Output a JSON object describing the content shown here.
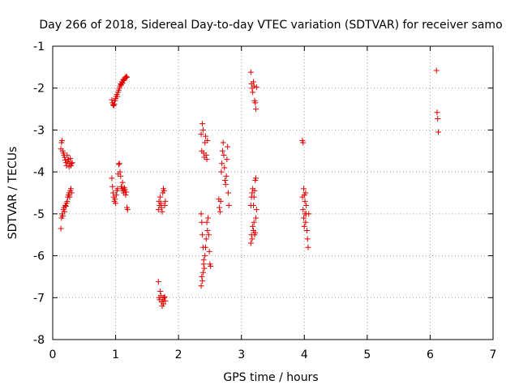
{
  "chart_data": {
    "type": "scatter",
    "title": "Day 266 of 2018, Sidereal Day-to-day VTEC variation (SDTVAR) for receiver samo",
    "xlabel": "GPS time / hours",
    "ylabel": "SDTVAR / TECUs",
    "xlim": [
      0,
      7
    ],
    "ylim": [
      -8,
      -1
    ],
    "xticks": [
      0,
      1,
      2,
      3,
      4,
      5,
      6,
      7
    ],
    "yticks": [
      -8,
      -7,
      -6,
      -5,
      -4,
      -3,
      -2,
      -1
    ],
    "grid": true,
    "marker": "+",
    "color": "#e00000",
    "series": [
      {
        "name": "SDTVAR",
        "points": [
          [
            0.13,
            -3.45
          ],
          [
            0.14,
            -3.3
          ],
          [
            0.15,
            -3.25
          ],
          [
            0.16,
            -3.5
          ],
          [
            0.17,
            -3.55
          ],
          [
            0.18,
            -3.6
          ],
          [
            0.19,
            -3.65
          ],
          [
            0.2,
            -3.72
          ],
          [
            0.21,
            -3.78
          ],
          [
            0.22,
            -3.85
          ],
          [
            0.23,
            -3.6
          ],
          [
            0.24,
            -3.75
          ],
          [
            0.25,
            -3.7
          ],
          [
            0.26,
            -3.88
          ],
          [
            0.27,
            -3.8
          ],
          [
            0.28,
            -3.68
          ],
          [
            0.29,
            -3.85
          ],
          [
            0.3,
            -3.8
          ],
          [
            0.31,
            -3.78
          ],
          [
            0.13,
            -5.35
          ],
          [
            0.14,
            -5.1
          ],
          [
            0.15,
            -5.0
          ],
          [
            0.16,
            -5.05
          ],
          [
            0.17,
            -4.9
          ],
          [
            0.18,
            -4.85
          ],
          [
            0.19,
            -4.95
          ],
          [
            0.2,
            -4.8
          ],
          [
            0.21,
            -4.82
          ],
          [
            0.22,
            -4.75
          ],
          [
            0.23,
            -4.7
          ],
          [
            0.24,
            -4.6
          ],
          [
            0.25,
            -4.55
          ],
          [
            0.26,
            -4.5
          ],
          [
            0.27,
            -4.6
          ],
          [
            0.28,
            -4.45
          ],
          [
            0.29,
            -4.4
          ],
          [
            0.3,
            -4.5
          ],
          [
            0.94,
            -2.28
          ],
          [
            0.95,
            -2.35
          ],
          [
            0.96,
            -2.4
          ],
          [
            0.97,
            -2.42
          ],
          [
            0.98,
            -2.38
          ],
          [
            0.99,
            -2.3
          ],
          [
            1.0,
            -2.25
          ],
          [
            1.01,
            -2.2
          ],
          [
            1.02,
            -2.15
          ],
          [
            1.03,
            -2.2
          ],
          [
            1.04,
            -2.1
          ],
          [
            1.05,
            -2.05
          ],
          [
            1.06,
            -2.0
          ],
          [
            1.07,
            -1.95
          ],
          [
            1.08,
            -1.9
          ],
          [
            1.09,
            -1.92
          ],
          [
            1.1,
            -1.85
          ],
          [
            1.11,
            -1.88
          ],
          [
            1.12,
            -1.8
          ],
          [
            1.13,
            -1.82
          ],
          [
            1.14,
            -1.78
          ],
          [
            1.15,
            -1.75
          ],
          [
            1.16,
            -1.76
          ],
          [
            1.17,
            -1.72
          ],
          [
            1.18,
            -1.74
          ],
          [
            0.94,
            -4.15
          ],
          [
            0.95,
            -4.35
          ],
          [
            0.96,
            -4.5
          ],
          [
            0.97,
            -4.6
          ],
          [
            0.98,
            -4.7
          ],
          [
            0.99,
            -4.65
          ],
          [
            1.0,
            -4.75
          ],
          [
            1.01,
            -4.55
          ],
          [
            1.02,
            -4.45
          ],
          [
            1.03,
            -4.4
          ],
          [
            1.04,
            -4.05
          ],
          [
            1.05,
            -3.82
          ],
          [
            1.06,
            -3.8
          ],
          [
            1.07,
            -4.0
          ],
          [
            1.08,
            -4.1
          ],
          [
            1.09,
            -4.35
          ],
          [
            1.1,
            -4.4
          ],
          [
            1.11,
            -4.25
          ],
          [
            1.12,
            -4.45
          ],
          [
            1.13,
            -4.5
          ],
          [
            1.14,
            -4.38
          ],
          [
            1.15,
            -4.42
          ],
          [
            1.16,
            -4.55
          ],
          [
            1.17,
            -4.48
          ],
          [
            1.18,
            -4.85
          ],
          [
            1.19,
            -4.9
          ],
          [
            1.68,
            -6.62
          ],
          [
            1.69,
            -7.0
          ],
          [
            1.7,
            -7.05
          ],
          [
            1.71,
            -6.85
          ],
          [
            1.72,
            -6.95
          ],
          [
            1.73,
            -7.1
          ],
          [
            1.74,
            -7.2
          ],
          [
            1.75,
            -7.05
          ],
          [
            1.76,
            -7.15
          ],
          [
            1.77,
            -7.0
          ],
          [
            1.78,
            -6.98
          ],
          [
            1.79,
            -7.08
          ],
          [
            1.68,
            -4.9
          ],
          [
            1.69,
            -4.7
          ],
          [
            1.7,
            -4.8
          ],
          [
            1.71,
            -4.6
          ],
          [
            1.72,
            -4.75
          ],
          [
            1.73,
            -4.85
          ],
          [
            1.74,
            -4.95
          ],
          [
            1.75,
            -4.5
          ],
          [
            1.76,
            -4.4
          ],
          [
            1.77,
            -4.45
          ],
          [
            1.78,
            -4.8
          ],
          [
            1.79,
            -4.7
          ],
          [
            2.36,
            -6.72
          ],
          [
            2.37,
            -6.5
          ],
          [
            2.38,
            -6.6
          ],
          [
            2.39,
            -6.4
          ],
          [
            2.4,
            -6.1
          ],
          [
            2.41,
            -6.3
          ],
          [
            2.42,
            -6.0
          ],
          [
            2.43,
            -5.8
          ],
          [
            2.44,
            -5.6
          ],
          [
            2.45,
            -5.2
          ],
          [
            2.46,
            -5.4
          ],
          [
            2.47,
            -5.1
          ],
          [
            2.48,
            -5.5
          ],
          [
            2.49,
            -5.9
          ],
          [
            2.5,
            -6.2
          ],
          [
            2.51,
            -6.25
          ],
          [
            2.36,
            -5.0
          ],
          [
            2.37,
            -5.2
          ],
          [
            2.38,
            -5.5
          ],
          [
            2.39,
            -5.8
          ],
          [
            2.4,
            -6.2
          ],
          [
            2.36,
            -3.1
          ],
          [
            2.37,
            -3.5
          ],
          [
            2.38,
            -2.85
          ],
          [
            2.39,
            -3.0
          ],
          [
            2.4,
            -3.55
          ],
          [
            2.41,
            -3.65
          ],
          [
            2.42,
            -3.3
          ],
          [
            2.43,
            -3.15
          ],
          [
            2.44,
            -3.6
          ],
          [
            2.45,
            -3.7
          ],
          [
            2.46,
            -3.25
          ],
          [
            2.64,
            -4.65
          ],
          [
            2.65,
            -4.85
          ],
          [
            2.66,
            -4.95
          ],
          [
            2.67,
            -4.7
          ],
          [
            2.68,
            -4.0
          ],
          [
            2.69,
            -3.8
          ],
          [
            2.7,
            -3.5
          ],
          [
            2.71,
            -3.3
          ],
          [
            2.72,
            -3.6
          ],
          [
            2.73,
            -3.9
          ],
          [
            2.74,
            -4.2
          ],
          [
            2.75,
            -4.3
          ],
          [
            2.76,
            -4.1
          ],
          [
            2.77,
            -3.7
          ],
          [
            2.78,
            -3.4
          ],
          [
            2.79,
            -4.5
          ],
          [
            2.8,
            -4.8
          ],
          [
            3.15,
            -1.62
          ],
          [
            3.16,
            -1.9
          ],
          [
            3.17,
            -2.0
          ],
          [
            3.18,
            -2.1
          ],
          [
            3.19,
            -1.85
          ],
          [
            3.2,
            -1.95
          ],
          [
            3.21,
            -2.3
          ],
          [
            3.22,
            -2.35
          ],
          [
            3.23,
            -2.5
          ],
          [
            3.24,
            -1.98
          ],
          [
            3.15,
            -5.7
          ],
          [
            3.16,
            -5.5
          ],
          [
            3.17,
            -5.6
          ],
          [
            3.18,
            -5.3
          ],
          [
            3.19,
            -5.4
          ],
          [
            3.2,
            -5.2
          ],
          [
            3.21,
            -5.5
          ],
          [
            3.22,
            -5.45
          ],
          [
            3.23,
            -5.1
          ],
          [
            3.15,
            -4.8
          ],
          [
            3.16,
            -4.6
          ],
          [
            3.17,
            -4.5
          ],
          [
            3.18,
            -4.4
          ],
          [
            3.19,
            -4.8
          ],
          [
            3.2,
            -4.6
          ],
          [
            3.21,
            -4.45
          ],
          [
            3.22,
            -4.2
          ],
          [
            3.23,
            -4.15
          ],
          [
            3.24,
            -4.9
          ],
          [
            3.97,
            -3.25
          ],
          [
            3.98,
            -3.3
          ],
          [
            3.99,
            -4.4
          ],
          [
            4.0,
            -4.55
          ],
          [
            4.01,
            -5.0
          ],
          [
            4.02,
            -5.2
          ],
          [
            4.03,
            -4.8
          ],
          [
            4.04,
            -5.4
          ],
          [
            4.05,
            -5.6
          ],
          [
            4.06,
            -5.8
          ],
          [
            4.07,
            -5.0
          ],
          [
            3.97,
            -4.6
          ],
          [
            3.98,
            -4.9
          ],
          [
            3.99,
            -5.1
          ],
          [
            4.0,
            -5.3
          ],
          [
            4.01,
            -4.7
          ],
          [
            4.02,
            -4.5
          ],
          [
            4.03,
            -5.0
          ],
          [
            6.1,
            -1.58
          ],
          [
            6.11,
            -2.58
          ],
          [
            6.12,
            -2.73
          ],
          [
            6.13,
            -3.05
          ]
        ]
      }
    ]
  }
}
